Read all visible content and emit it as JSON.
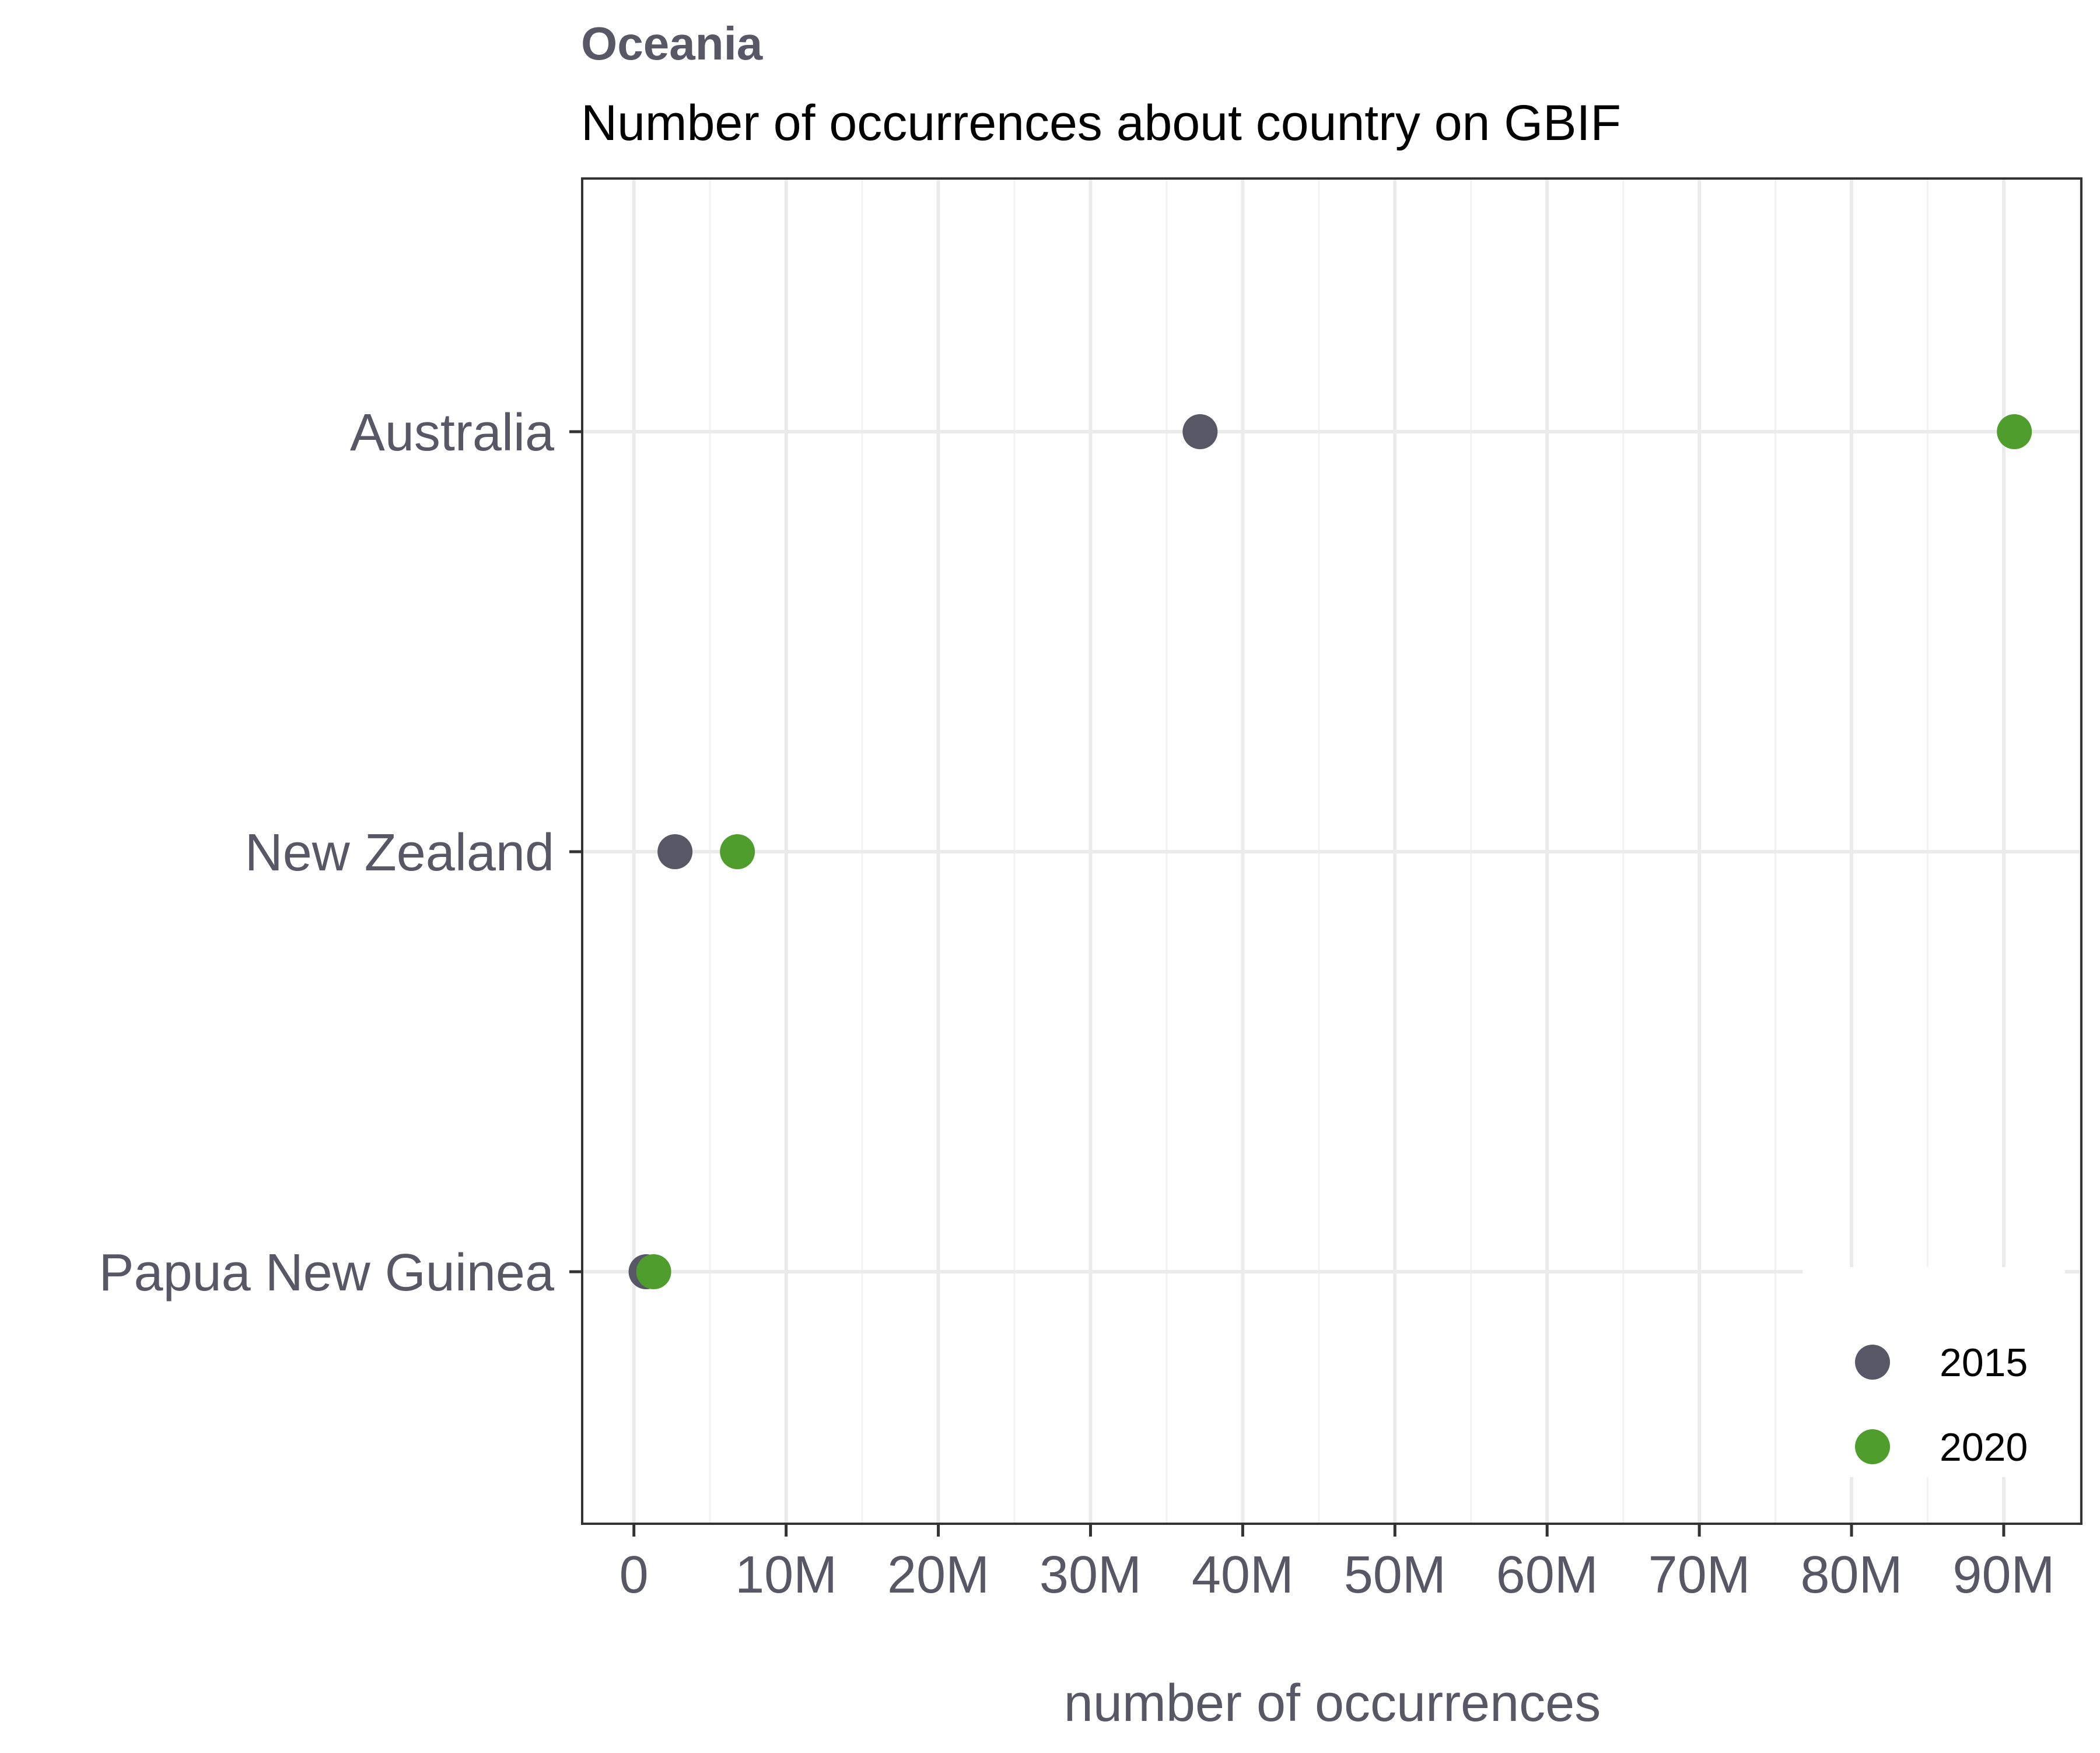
{
  "chart_data": {
    "type": "scatter",
    "title": "Oceania",
    "subtitle": "Number of occurrences about country on GBIF",
    "xlabel": "number of occurrences",
    "ylabel": "",
    "categories": [
      "Australia",
      "New Zealand",
      "Papua New Guinea"
    ],
    "series": [
      {
        "name": "2015",
        "color": "#575766",
        "values": [
          37200000,
          2700000,
          800000
        ]
      },
      {
        "name": "2020",
        "color": "#4e9d2d",
        "values": [
          90700000,
          6800000,
          1300000
        ]
      }
    ],
    "xlim": [
      -3400000,
      95100000
    ],
    "x_ticks": [
      0,
      10000000,
      20000000,
      30000000,
      40000000,
      50000000,
      60000000,
      70000000,
      80000000,
      90000000
    ],
    "x_tick_labels": [
      "0",
      "10M",
      "20M",
      "30M",
      "40M",
      "50M",
      "60M",
      "70M",
      "80M",
      "90M"
    ],
    "grid": true,
    "legend_position": "bottom-right"
  }
}
